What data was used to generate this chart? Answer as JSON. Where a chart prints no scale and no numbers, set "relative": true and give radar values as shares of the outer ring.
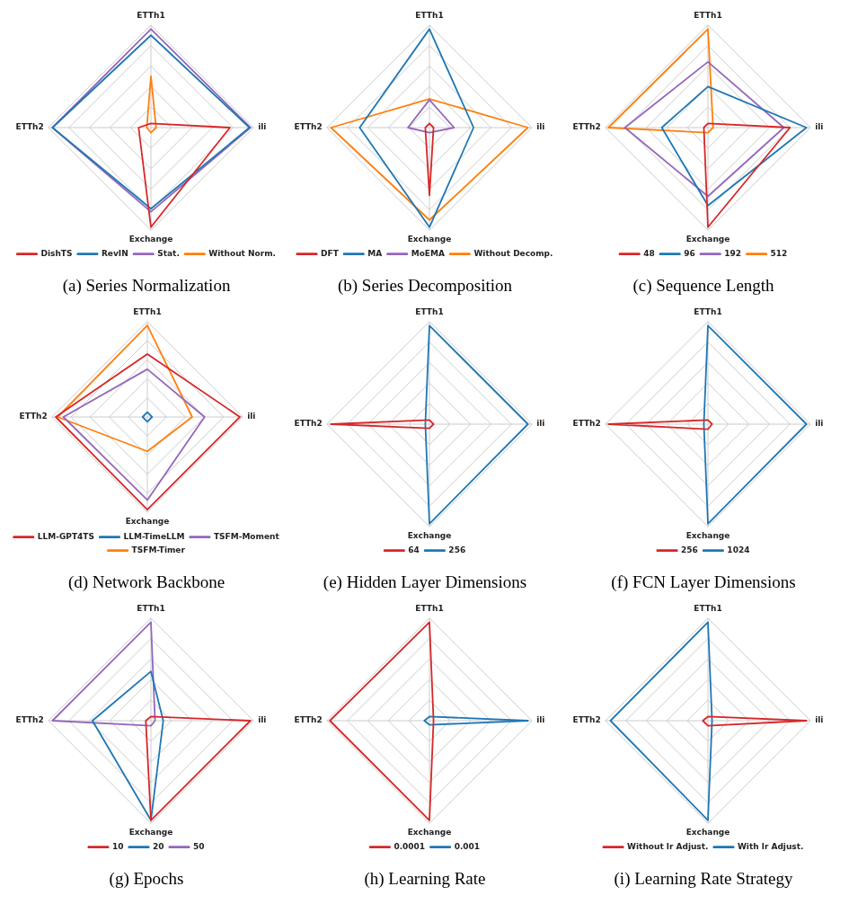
{
  "chart_data": [
    {
      "type": "radar",
      "title": "(a) Series Normalization",
      "relative": true,
      "grid": true,
      "legend": "bottom",
      "marker": "none",
      "categories": [
        "ETTh1",
        "ili",
        "Exchange",
        "ETTh2"
      ],
      "series": [
        {
          "name": "DishTS",
          "color": "#d62728",
          "values": [
            0.04,
            0.77,
            0.97,
            0.12
          ]
        },
        {
          "name": "RevIN",
          "color": "#1f77b4",
          "values": [
            0.9,
            0.96,
            0.79,
            0.96
          ]
        },
        {
          "name": "Stat.",
          "color": "#9467bd",
          "values": [
            0.96,
            0.97,
            0.82,
            0.96
          ]
        },
        {
          "name": "Without Norm.",
          "color": "#ff7f0e",
          "values": [
            0.5,
            0.05,
            0.05,
            0.04
          ]
        }
      ]
    },
    {
      "type": "radar",
      "title": "(b) Series Decomposition",
      "relative": true,
      "grid": true,
      "legend": "bottom",
      "marker": "none",
      "categories": [
        "ETTh1",
        "ili",
        "Exchange",
        "ETTh2"
      ],
      "series": [
        {
          "name": "DFT",
          "color": "#d62728",
          "values": [
            0.04,
            0.04,
            0.66,
            0.04
          ]
        },
        {
          "name": "MA",
          "color": "#1f77b4",
          "values": [
            0.96,
            0.43,
            0.97,
            0.68
          ]
        },
        {
          "name": "MoEMA",
          "color": "#9467bd",
          "values": [
            0.27,
            0.24,
            0.05,
            0.21
          ]
        },
        {
          "name": "Without Decomp.",
          "color": "#ff7f0e",
          "values": [
            0.28,
            0.96,
            0.9,
            0.96
          ]
        }
      ]
    },
    {
      "type": "radar",
      "title": "(c) Sequence Length",
      "relative": true,
      "grid": true,
      "legend": "bottom",
      "marker": "none",
      "categories": [
        "ETTh1",
        "ili",
        "Exchange",
        "ETTh2"
      ],
      "series": [
        {
          "name": "48",
          "color": "#d62728",
          "values": [
            0.04,
            0.8,
            0.97,
            0.04
          ]
        },
        {
          "name": "96",
          "color": "#1f77b4",
          "values": [
            0.4,
            0.96,
            0.76,
            0.45
          ]
        },
        {
          "name": "192",
          "color": "#9467bd",
          "values": [
            0.64,
            0.74,
            0.67,
            0.81
          ]
        },
        {
          "name": "512",
          "color": "#ff7f0e",
          "values": [
            0.96,
            0.05,
            0.05,
            0.97
          ]
        }
      ]
    },
    {
      "type": "radar",
      "title": "(d) Network Backbone",
      "relative": true,
      "grid": true,
      "legend": "bottom",
      "marker": "none",
      "categories": [
        "ETTh1",
        "ili",
        "Exchange",
        "ETTh2"
      ],
      "series": [
        {
          "name": "LLM-GPT4TS",
          "color": "#d62728",
          "values": [
            0.66,
            0.97,
            0.97,
            0.96
          ]
        },
        {
          "name": "LLM-TimeLLM",
          "color": "#1f77b4",
          "values": [
            0.05,
            0.05,
            0.05,
            0.05
          ]
        },
        {
          "name": "TSFM-Moment",
          "color": "#9467bd",
          "values": [
            0.5,
            0.6,
            0.87,
            0.88
          ]
        },
        {
          "name": "TSFM-Timer",
          "color": "#ff7f0e",
          "values": [
            0.96,
            0.47,
            0.36,
            0.94
          ]
        }
      ]
    },
    {
      "type": "radar",
      "title": "(e) Hidden Layer Dimensions",
      "relative": true,
      "grid": true,
      "legend": "bottom",
      "marker": "none",
      "categories": [
        "ETTh1",
        "ili",
        "Exchange",
        "ETTh2"
      ],
      "series": [
        {
          "name": "64",
          "color": "#d62728",
          "values": [
            0.04,
            0.04,
            0.04,
            0.96
          ]
        },
        {
          "name": "256",
          "color": "#1f77b4",
          "values": [
            0.96,
            0.96,
            0.97,
            0.04
          ]
        }
      ]
    },
    {
      "type": "radar",
      "title": "(f) FCN Layer Dimensions",
      "relative": true,
      "grid": true,
      "legend": "bottom",
      "marker": "none",
      "categories": [
        "ETTh1",
        "ili",
        "Exchange",
        "ETTh2"
      ],
      "series": [
        {
          "name": "256",
          "color": "#d62728",
          "values": [
            0.04,
            0.04,
            0.05,
            0.97
          ]
        },
        {
          "name": "1024",
          "color": "#1f77b4",
          "values": [
            0.96,
            0.96,
            0.97,
            0.04
          ]
        }
      ]
    },
    {
      "type": "radar",
      "title": "(g) Epochs",
      "relative": true,
      "grid": true,
      "legend": "bottom",
      "marker": "none",
      "categories": [
        "ETTh1",
        "ili",
        "Exchange",
        "ETTh2"
      ],
      "series": [
        {
          "name": "10",
          "color": "#d62728",
          "values": [
            0.04,
            0.97,
            0.97,
            0.05
          ]
        },
        {
          "name": "20",
          "color": "#1f77b4",
          "values": [
            0.48,
            0.12,
            0.97,
            0.57
          ]
        },
        {
          "name": "50",
          "color": "#9467bd",
          "values": [
            0.96,
            0.04,
            0.05,
            0.96
          ]
        }
      ]
    },
    {
      "type": "radar",
      "title": "(h) Learning Rate",
      "relative": true,
      "grid": true,
      "legend": "bottom",
      "marker": "none",
      "categories": [
        "ETTh1",
        "ili",
        "Exchange",
        "ETTh2"
      ],
      "series": [
        {
          "name": "0.0001",
          "color": "#d62728",
          "values": [
            0.96,
            0.04,
            0.97,
            0.97
          ]
        },
        {
          "name": "0.001",
          "color": "#1f77b4",
          "values": [
            0.04,
            0.96,
            0.04,
            0.05
          ]
        }
      ]
    },
    {
      "type": "radar",
      "title": "(i) Learning Rate Strategy",
      "relative": true,
      "grid": true,
      "legend": "bottom",
      "marker": "none",
      "categories": [
        "ETTh1",
        "ili",
        "Exchange",
        "ETTh2"
      ],
      "series": [
        {
          "name": "Without lr Adjust.",
          "color": "#d62728",
          "values": [
            0.04,
            0.96,
            0.05,
            0.05
          ]
        },
        {
          "name": "With lr Adjust.",
          "color": "#1f77b4",
          "values": [
            0.96,
            0.04,
            0.97,
            0.95
          ]
        }
      ]
    }
  ]
}
